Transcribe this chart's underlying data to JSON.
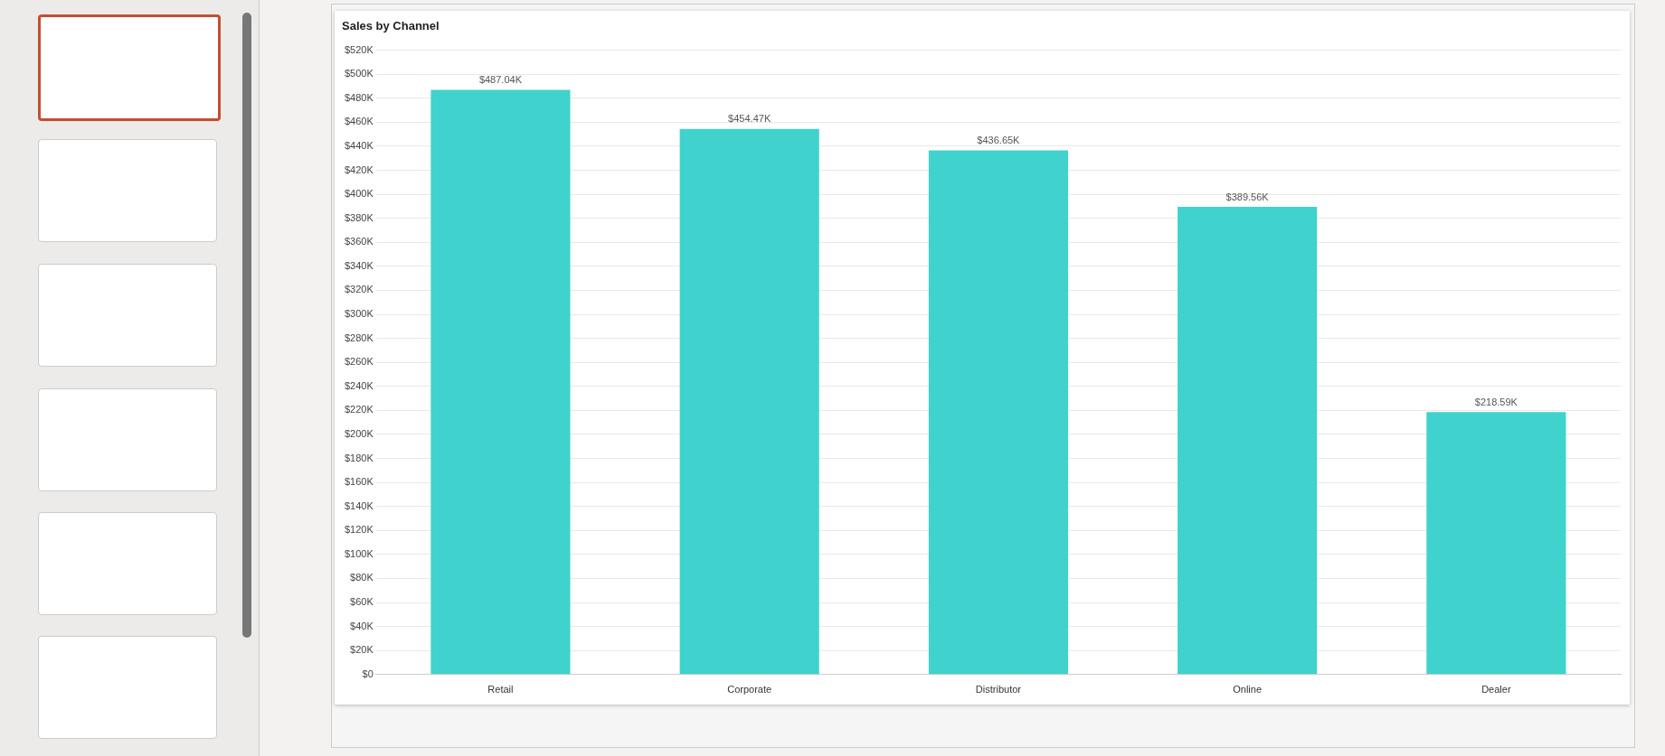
{
  "chart_data": {
    "type": "bar",
    "title": "Sales by Channel",
    "categories": [
      "Retail",
      "Corporate",
      "Distributor",
      "Online",
      "Dealer"
    ],
    "values": [
      487040,
      454470,
      436650,
      389560,
      218590
    ],
    "value_labels": [
      "$487.04K",
      "$454.47K",
      "$436.65K",
      "$389.56K",
      "$218.59K"
    ],
    "color": "#40d2cc",
    "ylim": [
      0,
      520000
    ],
    "yticks": [
      {
        "value": 0,
        "label": "$0"
      },
      {
        "value": 20000,
        "label": "$20K"
      },
      {
        "value": 40000,
        "label": "$40K"
      },
      {
        "value": 60000,
        "label": "$60K"
      },
      {
        "value": 80000,
        "label": "$80K"
      },
      {
        "value": 100000,
        "label": "$100K"
      },
      {
        "value": 120000,
        "label": "$120K"
      },
      {
        "value": 140000,
        "label": "$140K"
      },
      {
        "value": 160000,
        "label": "$160K"
      },
      {
        "value": 180000,
        "label": "$180K"
      },
      {
        "value": 200000,
        "label": "$200K"
      },
      {
        "value": 220000,
        "label": "$220K"
      },
      {
        "value": 240000,
        "label": "$240K"
      },
      {
        "value": 260000,
        "label": "$260K"
      },
      {
        "value": 280000,
        "label": "$280K"
      },
      {
        "value": 300000,
        "label": "$300K"
      },
      {
        "value": 320000,
        "label": "$320K"
      },
      {
        "value": 340000,
        "label": "$340K"
      },
      {
        "value": 360000,
        "label": "$360K"
      },
      {
        "value": 380000,
        "label": "$380K"
      },
      {
        "value": 400000,
        "label": "$400K"
      },
      {
        "value": 420000,
        "label": "$420K"
      },
      {
        "value": 440000,
        "label": "$440K"
      },
      {
        "value": 460000,
        "label": "$460K"
      },
      {
        "value": 480000,
        "label": "$480K"
      },
      {
        "value": 500000,
        "label": "$500K"
      },
      {
        "value": 520000,
        "label": "$520K"
      }
    ],
    "grid": "y",
    "legend": false
  }
}
